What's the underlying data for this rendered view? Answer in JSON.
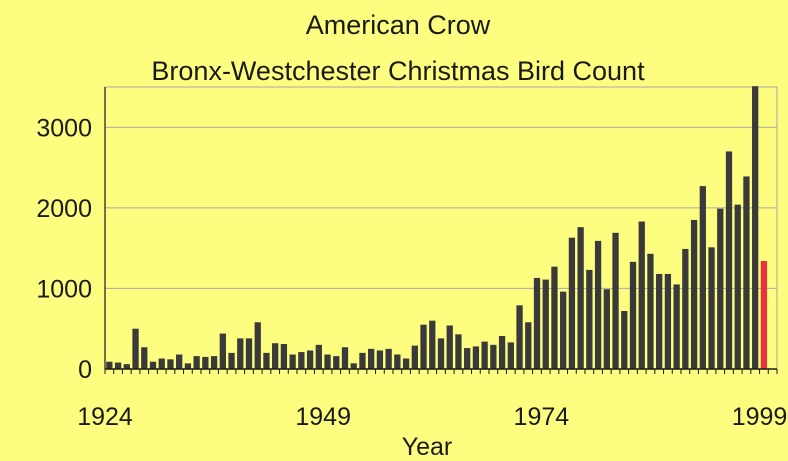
{
  "title": "American Crow",
  "subtitle": "Bronx-Westchester Christmas Bird Count",
  "colors": {
    "background": "#fdfd80",
    "bar": "#3a3a3a",
    "highlight_bar": "#e8323c",
    "grid": "#a8a8a8",
    "axis": "#1a1a1a"
  },
  "chart_data": {
    "type": "bar",
    "title": "American Crow",
    "subtitle": "Bronx-Westchester Christmas Bird Count",
    "xlabel": "Year",
    "ylabel": "",
    "xlim": [
      1924,
      2001
    ],
    "ylim": [
      0,
      3500
    ],
    "x_ticks": [
      1924,
      1949,
      1974,
      1999
    ],
    "y_ticks": [
      0,
      1000,
      2000,
      3000
    ],
    "grid": true,
    "years": [
      1924,
      1925,
      1926,
      1927,
      1928,
      1929,
      1930,
      1931,
      1932,
      1933,
      1934,
      1935,
      1936,
      1937,
      1938,
      1939,
      1940,
      1941,
      1942,
      1943,
      1944,
      1945,
      1946,
      1947,
      1948,
      1949,
      1950,
      1951,
      1952,
      1953,
      1954,
      1955,
      1956,
      1957,
      1958,
      1959,
      1960,
      1961,
      1962,
      1963,
      1964,
      1965,
      1966,
      1967,
      1968,
      1969,
      1970,
      1971,
      1972,
      1973,
      1974,
      1975,
      1976,
      1977,
      1978,
      1979,
      1980,
      1981,
      1982,
      1983,
      1984,
      1985,
      1986,
      1987,
      1988,
      1989,
      1990,
      1991,
      1992,
      1993,
      1994,
      1995,
      1996,
      1997,
      1998,
      1999
    ],
    "values": [
      90,
      80,
      60,
      500,
      270,
      90,
      130,
      120,
      180,
      70,
      160,
      150,
      160,
      440,
      200,
      380,
      380,
      580,
      200,
      320,
      310,
      180,
      210,
      230,
      300,
      180,
      160,
      270,
      70,
      200,
      250,
      230,
      250,
      180,
      130,
      290,
      550,
      600,
      380,
      540,
      430,
      260,
      280,
      340,
      300,
      410,
      330,
      790,
      580,
      1130,
      1110,
      1270,
      960,
      1630,
      1760,
      1230,
      1590,
      990,
      1690,
      720,
      1330,
      1830,
      1430,
      1180,
      1180,
      1050,
      1490,
      1850,
      2270,
      1510,
      1990,
      2700,
      2040,
      2390,
      3510,
      1340
    ],
    "highlight_years": [
      1999
    ]
  }
}
